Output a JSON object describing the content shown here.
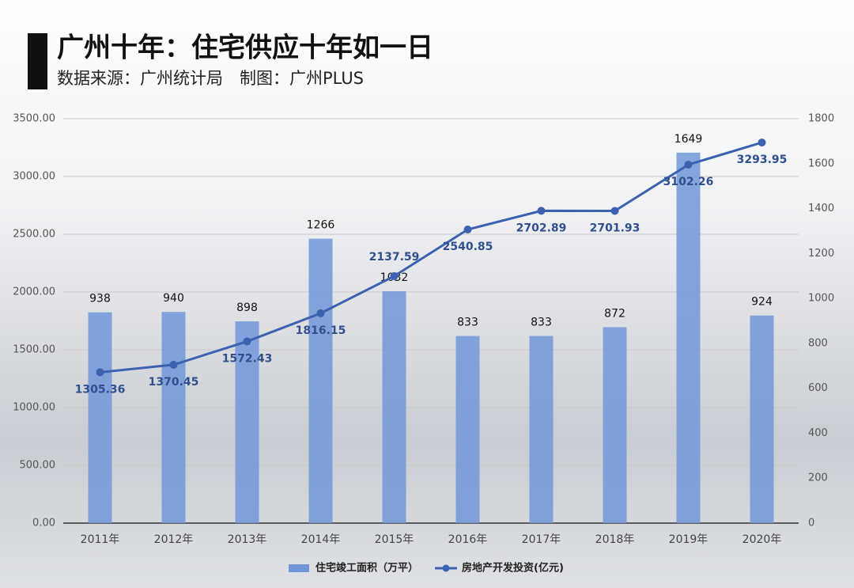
{
  "chart_data": {
    "type": "bar-line",
    "title": "广州十年：住宅供应十年如一日",
    "subtitle": "数据来源：广州统计局　制图：广州PLUS",
    "categories": [
      "2011年",
      "2012年",
      "2013年",
      "2014年",
      "2015年",
      "2016年",
      "2017年",
      "2018年",
      "2019年",
      "2020年"
    ],
    "series": [
      {
        "name": "住宅竣工面积（万平）",
        "type": "bar",
        "axis": "y2",
        "color": "#7196d8",
        "values": [
          938,
          940,
          898,
          1266,
          1032,
          833,
          833,
          872,
          1649,
          924
        ]
      },
      {
        "name": "房地产开发投资(亿元)",
        "type": "line",
        "axis": "y",
        "color": "#3b62b0",
        "values": [
          1305.36,
          1370.45,
          1572.43,
          1816.15,
          2137.59,
          2540.85,
          2702.89,
          2701.93,
          3102.26,
          3293.95
        ]
      }
    ],
    "ylim": [
      0,
      3500
    ],
    "yticks": [
      {
        "value": 0,
        "label": "0.00"
      },
      {
        "value": 500,
        "label": "500.00"
      },
      {
        "value": 1000,
        "label": "1000.00"
      },
      {
        "value": 1500,
        "label": "1500.00"
      },
      {
        "value": 2000,
        "label": "2000.00"
      },
      {
        "value": 2500,
        "label": "2500.00"
      },
      {
        "value": 3000,
        "label": "3000.00"
      },
      {
        "value": 3500,
        "label": "3500.00"
      }
    ],
    "y2lim": [
      0,
      1800
    ],
    "y2ticks": [
      0,
      200,
      400,
      600,
      800,
      1000,
      1200,
      1400,
      1600,
      1800
    ],
    "grid": true,
    "legend": "bottom"
  }
}
